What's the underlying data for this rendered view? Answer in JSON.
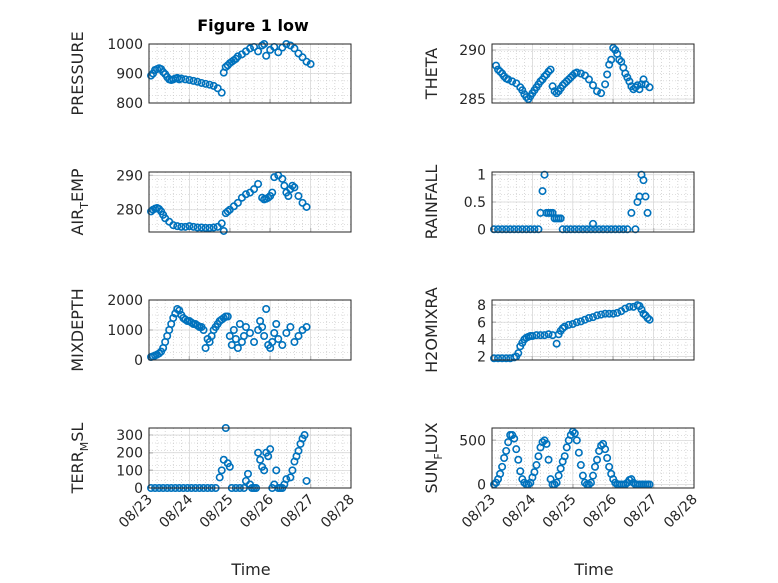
{
  "figure": {
    "title": "Figure 1 low",
    "xlabel_left": "Time",
    "xlabel_right": "Time",
    "marker_color": "#0072bd"
  },
  "chart_data": [
    {
      "type": "scatter",
      "ylabel": "PRESSURE",
      "ylim": [
        800,
        1000
      ],
      "yticks": [
        800,
        900,
        1000
      ],
      "xlim": [
        0,
        5
      ],
      "xticklabels": [
        "08/23",
        "08/24",
        "08/25",
        "08/26",
        "08/27",
        "08/28"
      ],
      "grid": true,
      "x": [
        0.05,
        0.1,
        0.15,
        0.2,
        0.25,
        0.3,
        0.35,
        0.4,
        0.45,
        0.5,
        0.55,
        0.6,
        0.65,
        0.7,
        0.75,
        0.8,
        0.9,
        1.0,
        1.1,
        1.2,
        1.3,
        1.4,
        1.5,
        1.6,
        1.7,
        1.8,
        1.85,
        1.9,
        1.95,
        2.0,
        2.05,
        2.1,
        2.15,
        2.2,
        2.3,
        2.4,
        2.5,
        2.6,
        2.7,
        2.8,
        2.85,
        2.9,
        3.0,
        3.1,
        3.2,
        3.3,
        3.4,
        3.5,
        3.6,
        3.7,
        3.8,
        3.9,
        4.0
      ],
      "y": [
        893,
        900,
        912,
        915,
        918,
        915,
        905,
        898,
        888,
        880,
        878,
        880,
        883,
        885,
        880,
        883,
        880,
        878,
        875,
        872,
        868,
        865,
        862,
        858,
        850,
        835,
        903,
        922,
        928,
        935,
        940,
        945,
        950,
        958,
        965,
        975,
        985,
        990,
        975,
        995,
        1000,
        960,
        980,
        990,
        972,
        988,
        1000,
        995,
        985,
        968,
        955,
        940,
        932
      ]
    },
    {
      "type": "scatter",
      "ylabel": "THETA",
      "ylim": [
        284.6,
        290.6
      ],
      "yticks": [
        285,
        290
      ],
      "xlim": [
        0,
        5
      ],
      "xticklabels": [
        "08/23",
        "08/24",
        "08/25",
        "08/26",
        "08/27",
        "08/28"
      ],
      "grid": true,
      "x": [
        0.1,
        0.15,
        0.2,
        0.25,
        0.3,
        0.35,
        0.4,
        0.5,
        0.6,
        0.7,
        0.75,
        0.8,
        0.85,
        0.9,
        0.95,
        1.0,
        1.05,
        1.1,
        1.15,
        1.2,
        1.25,
        1.3,
        1.35,
        1.4,
        1.45,
        1.5,
        1.55,
        1.6,
        1.65,
        1.7,
        1.75,
        1.8,
        1.85,
        1.9,
        1.95,
        2.0,
        2.05,
        2.1,
        2.2,
        2.3,
        2.4,
        2.5,
        2.6,
        2.7,
        2.8,
        2.85,
        2.9,
        2.95,
        3.0,
        3.05,
        3.1,
        3.15,
        3.2,
        3.25,
        3.3,
        3.35,
        3.4,
        3.45,
        3.5,
        3.55,
        3.6,
        3.65,
        3.7,
        3.75,
        3.8,
        3.9
      ],
      "y": [
        288.4,
        288.0,
        287.8,
        287.6,
        287.3,
        287.1,
        287.0,
        286.8,
        286.6,
        286.2,
        285.9,
        285.5,
        285.2,
        285.0,
        285.3,
        285.6,
        285.9,
        286.2,
        286.5,
        286.8,
        287.0,
        287.3,
        287.5,
        287.8,
        288.0,
        286.3,
        285.8,
        285.6,
        285.8,
        286.1,
        286.4,
        286.6,
        286.8,
        287.0,
        287.2,
        287.4,
        287.6,
        287.7,
        287.6,
        287.4,
        287.0,
        286.4,
        285.8,
        285.6,
        286.5,
        287.5,
        288.5,
        289.0,
        290.2,
        290.0,
        289.6,
        289.0,
        288.8,
        288.2,
        287.6,
        287.2,
        286.8,
        286.3,
        286.0,
        286.2,
        286.4,
        286.0,
        286.5,
        287.0,
        286.5,
        286.2
      ]
    },
    {
      "type": "scatter",
      "ylabel": "AIR_TEMP",
      "ylim": [
        273.5,
        291
      ],
      "yticks": [
        280,
        290
      ],
      "xlim": [
        0,
        5
      ],
      "xticklabels": [
        "08/23",
        "08/24",
        "08/25",
        "08/26",
        "08/27",
        "08/28"
      ],
      "grid": true,
      "x": [
        0.05,
        0.1,
        0.15,
        0.2,
        0.25,
        0.3,
        0.35,
        0.4,
        0.5,
        0.6,
        0.7,
        0.8,
        0.9,
        1.0,
        1.1,
        1.2,
        1.3,
        1.4,
        1.5,
        1.6,
        1.7,
        1.8,
        1.85,
        1.9,
        1.95,
        2.0,
        2.1,
        2.2,
        2.3,
        2.4,
        2.5,
        2.6,
        2.7,
        2.8,
        2.85,
        2.9,
        2.95,
        3.0,
        3.05,
        3.1,
        3.2,
        3.3,
        3.35,
        3.4,
        3.45,
        3.5,
        3.55,
        3.6,
        3.7,
        3.8,
        3.9
      ],
      "y": [
        279.5,
        280.0,
        280.3,
        280.5,
        280.2,
        279.5,
        278.5,
        277.5,
        276.5,
        275.5,
        275.2,
        275.0,
        275.0,
        275.2,
        275.0,
        274.8,
        274.8,
        274.7,
        274.7,
        274.8,
        275.0,
        276.0,
        273.8,
        279.0,
        279.5,
        280.0,
        281.0,
        282.0,
        283.5,
        284.5,
        285.0,
        286.0,
        287.5,
        283.5,
        283.0,
        283.2,
        283.5,
        284.0,
        285.0,
        289.5,
        290.0,
        289.0,
        287.0,
        285.0,
        284.0,
        286.0,
        287.0,
        286.5,
        284.0,
        282.0,
        280.8
      ]
    },
    {
      "type": "scatter",
      "ylabel": "RAINFALL",
      "ylim": [
        -0.05,
        1.05
      ],
      "yticks": [
        0,
        0.5,
        1
      ],
      "ytickformat": [
        "0",
        "0.5",
        "1"
      ],
      "xlim": [
        0,
        5
      ],
      "xticklabels": [
        "08/23",
        "08/24",
        "08/25",
        "08/26",
        "08/27",
        "08/28"
      ],
      "grid": true,
      "x": [
        0.05,
        0.15,
        0.25,
        0.35,
        0.45,
        0.55,
        0.65,
        0.75,
        0.85,
        0.95,
        1.05,
        1.15,
        1.2,
        1.25,
        1.3,
        1.35,
        1.4,
        1.45,
        1.5,
        1.55,
        1.6,
        1.65,
        1.7,
        1.75,
        1.85,
        1.95,
        2.05,
        2.15,
        2.25,
        2.35,
        2.45,
        2.5,
        2.55,
        2.65,
        2.75,
        2.85,
        2.95,
        3.05,
        3.15,
        3.25,
        3.35,
        3.45,
        3.55,
        3.6,
        3.65,
        3.7,
        3.75,
        3.8,
        3.85
      ],
      "y": [
        0,
        0,
        0,
        0,
        0,
        0,
        0,
        0,
        0,
        0,
        0,
        0,
        0.3,
        0.7,
        1.0,
        0.3,
        0.3,
        0.3,
        0.3,
        0.2,
        0.2,
        0.2,
        0.2,
        0,
        0,
        0,
        0,
        0,
        0,
        0,
        0,
        0.1,
        0,
        0,
        0,
        0,
        0,
        0,
        0,
        0,
        0,
        0.3,
        0,
        0.5,
        0.6,
        1.0,
        0.9,
        0.6,
        0.3
      ]
    },
    {
      "type": "scatter",
      "ylabel": "MIXDEPTH",
      "ylim": [
        0,
        2000
      ],
      "yticks": [
        0,
        1000,
        2000
      ],
      "xlim": [
        0,
        5
      ],
      "xticklabels": [
        "08/23",
        "08/24",
        "08/25",
        "08/26",
        "08/27",
        "08/28"
      ],
      "grid": true,
      "x": [
        0.05,
        0.1,
        0.15,
        0.2,
        0.25,
        0.3,
        0.35,
        0.4,
        0.45,
        0.5,
        0.55,
        0.6,
        0.65,
        0.7,
        0.75,
        0.8,
        0.85,
        0.9,
        0.95,
        1.0,
        1.05,
        1.1,
        1.15,
        1.2,
        1.25,
        1.3,
        1.35,
        1.4,
        1.45,
        1.5,
        1.55,
        1.6,
        1.65,
        1.7,
        1.75,
        1.8,
        1.85,
        1.9,
        1.95,
        2.0,
        2.05,
        2.1,
        2.15,
        2.2,
        2.25,
        2.3,
        2.35,
        2.4,
        2.5,
        2.6,
        2.7,
        2.75,
        2.8,
        2.85,
        2.9,
        2.95,
        3.0,
        3.05,
        3.1,
        3.15,
        3.2,
        3.3,
        3.4,
        3.5,
        3.6,
        3.7,
        3.8,
        3.9
      ],
      "y": [
        100,
        120,
        150,
        180,
        220,
        280,
        400,
        600,
        800,
        1000,
        1200,
        1400,
        1550,
        1700,
        1650,
        1500,
        1400,
        1350,
        1300,
        1300,
        1250,
        1200,
        1200,
        1150,
        1100,
        1100,
        1000,
        400,
        700,
        600,
        800,
        1000,
        1100,
        1200,
        1300,
        1350,
        1400,
        1450,
        1450,
        800,
        500,
        1000,
        700,
        400,
        1200,
        600,
        800,
        1100,
        900,
        600,
        1000,
        1300,
        1100,
        800,
        1700,
        500,
        400,
        600,
        900,
        1200,
        700,
        500,
        900,
        1100,
        600,
        800,
        1000,
        1100
      ]
    },
    {
      "type": "scatter",
      "ylabel": "H2OMIXRA",
      "ylim": [
        1.6,
        8.6
      ],
      "yticks": [
        2,
        4,
        6,
        8
      ],
      "xlim": [
        0,
        5
      ],
      "xticklabels": [
        "08/23",
        "08/24",
        "08/25",
        "08/26",
        "08/27",
        "08/28"
      ],
      "grid": true,
      "x": [
        0.05,
        0.15,
        0.25,
        0.35,
        0.45,
        0.55,
        0.6,
        0.65,
        0.7,
        0.75,
        0.8,
        0.85,
        0.9,
        0.95,
        1.0,
        1.1,
        1.2,
        1.3,
        1.4,
        1.5,
        1.6,
        1.65,
        1.7,
        1.75,
        1.8,
        1.9,
        2.0,
        2.1,
        2.2,
        2.3,
        2.4,
        2.5,
        2.6,
        2.7,
        2.8,
        2.9,
        3.0,
        3.1,
        3.2,
        3.3,
        3.4,
        3.5,
        3.6,
        3.65,
        3.7,
        3.75,
        3.8,
        3.85,
        3.9
      ],
      "y": [
        1.8,
        1.8,
        1.8,
        1.8,
        1.8,
        1.9,
        2.0,
        2.4,
        3.2,
        3.6,
        4.0,
        4.2,
        4.3,
        4.4,
        4.4,
        4.5,
        4.5,
        4.5,
        4.6,
        4.5,
        3.5,
        4.6,
        5.0,
        5.3,
        5.5,
        5.7,
        5.8,
        6.0,
        6.1,
        6.3,
        6.5,
        6.6,
        6.8,
        6.9,
        7.0,
        7.0,
        7.0,
        7.1,
        7.3,
        7.6,
        7.8,
        7.8,
        8.0,
        7.9,
        7.5,
        7.0,
        6.8,
        6.5,
        6.3
      ]
    },
    {
      "type": "scatter",
      "ylabel": "TERR_MSL",
      "ylim": [
        0,
        340
      ],
      "yticks": [
        0,
        100,
        200,
        300
      ],
      "xlim": [
        0,
        5
      ],
      "xticklabels": [
        "08/23",
        "08/24",
        "08/25",
        "08/26",
        "08/27",
        "08/28"
      ],
      "grid": true,
      "x": [
        0.05,
        0.15,
        0.25,
        0.35,
        0.45,
        0.55,
        0.65,
        0.75,
        0.85,
        0.95,
        1.05,
        1.15,
        1.25,
        1.35,
        1.45,
        1.55,
        1.65,
        1.75,
        1.8,
        1.85,
        1.9,
        1.95,
        2.0,
        2.05,
        2.15,
        2.25,
        2.35,
        2.4,
        2.45,
        2.5,
        2.55,
        2.6,
        2.65,
        2.7,
        2.75,
        2.8,
        2.85,
        2.9,
        2.95,
        3.0,
        3.05,
        3.1,
        3.15,
        3.2,
        3.25,
        3.3,
        3.35,
        3.4,
        3.5,
        3.55,
        3.6,
        3.65,
        3.7,
        3.75,
        3.8,
        3.85,
        3.9
      ],
      "y": [
        0,
        0,
        0,
        0,
        0,
        0,
        0,
        0,
        0,
        0,
        0,
        0,
        0,
        0,
        0,
        0,
        0,
        60,
        100,
        160,
        340,
        140,
        120,
        0,
        0,
        0,
        0,
        40,
        80,
        20,
        0,
        0,
        0,
        200,
        160,
        120,
        100,
        200,
        180,
        220,
        0,
        20,
        100,
        0,
        0,
        0,
        20,
        50,
        60,
        100,
        150,
        180,
        210,
        250,
        280,
        300,
        40
      ]
    },
    {
      "type": "scatter",
      "ylabel": "SUN_FLUX",
      "ylim": [
        -40,
        640
      ],
      "yticks": [
        0,
        500
      ],
      "xlim": [
        0,
        5
      ],
      "xticklabels": [
        "08/23",
        "08/24",
        "08/25",
        "08/26",
        "08/27",
        "08/28"
      ],
      "grid": true,
      "x": [
        0.05,
        0.1,
        0.15,
        0.2,
        0.25,
        0.3,
        0.35,
        0.4,
        0.45,
        0.5,
        0.55,
        0.6,
        0.65,
        0.7,
        0.75,
        0.8,
        0.85,
        0.9,
        0.95,
        1.0,
        1.05,
        1.1,
        1.15,
        1.2,
        1.25,
        1.3,
        1.35,
        1.4,
        1.45,
        1.5,
        1.55,
        1.6,
        1.65,
        1.7,
        1.75,
        1.8,
        1.85,
        1.9,
        1.95,
        2.0,
        2.05,
        2.1,
        2.15,
        2.2,
        2.25,
        2.3,
        2.35,
        2.4,
        2.45,
        2.5,
        2.55,
        2.6,
        2.65,
        2.7,
        2.75,
        2.8,
        2.85,
        2.9,
        2.95,
        3.0,
        3.05,
        3.1,
        3.15,
        3.2,
        3.25,
        3.3,
        3.35,
        3.4,
        3.45,
        3.5,
        3.55,
        3.6,
        3.65,
        3.7,
        3.75,
        3.8,
        3.85,
        3.9
      ],
      "y": [
        0,
        20,
        60,
        120,
        200,
        300,
        380,
        480,
        560,
        560,
        520,
        400,
        280,
        150,
        60,
        20,
        0,
        0,
        20,
        80,
        140,
        220,
        320,
        420,
        480,
        500,
        460,
        280,
        60,
        0,
        0,
        20,
        100,
        180,
        260,
        320,
        420,
        500,
        560,
        600,
        580,
        500,
        360,
        220,
        100,
        20,
        0,
        0,
        20,
        100,
        200,
        280,
        380,
        440,
        460,
        400,
        300,
        200,
        120,
        60,
        20,
        0,
        0,
        0,
        0,
        0,
        20,
        50,
        60,
        20,
        0,
        0,
        0,
        0,
        0,
        0,
        0,
        0
      ]
    }
  ]
}
